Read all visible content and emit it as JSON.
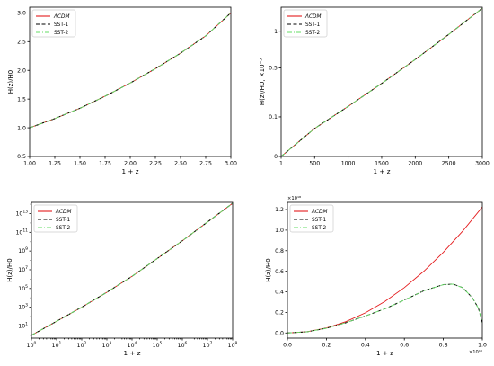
{
  "figure": {},
  "chart_data": [
    {
      "type": "line",
      "panel": "top-left",
      "xlabel": "1 + z",
      "ylabel": "H(z)/H0",
      "xlim": [
        1.0,
        3.0
      ],
      "ylim": [
        0.5,
        3.1
      ],
      "yscale": "linear",
      "xticks": [
        1.0,
        1.25,
        1.5,
        1.75,
        2.0,
        2.25,
        2.5,
        2.75,
        3.0
      ],
      "xtick_labels": [
        "1.00",
        "1.25",
        "1.50",
        "1.75",
        "2.00",
        "2.25",
        "2.50",
        "2.75",
        "3.00"
      ],
      "yticks": [
        0.5,
        1.0,
        1.5,
        2.0,
        2.5,
        3.0
      ],
      "ytick_labels": [
        "0.5",
        "1.0",
        "1.5",
        "2.0",
        "2.5",
        "3.0"
      ],
      "legend_position": "top-left",
      "x": [
        1.0,
        1.25,
        1.5,
        1.75,
        2.0,
        2.25,
        2.5,
        2.75,
        3.0
      ],
      "series": [
        {
          "name": "ΛCDM",
          "color": "#e41a1c",
          "style": "solid",
          "values": [
            1.0,
            1.16,
            1.34,
            1.55,
            1.78,
            2.03,
            2.3,
            2.6,
            3.0
          ]
        },
        {
          "name": "SST-1",
          "color": "#000000",
          "style": "dashed",
          "values": [
            1.0,
            1.16,
            1.34,
            1.55,
            1.78,
            2.03,
            2.3,
            2.6,
            3.0
          ]
        },
        {
          "name": "SST-2",
          "color": "#66dd66",
          "style": "dashdot",
          "values": [
            1.0,
            1.16,
            1.34,
            1.55,
            1.78,
            2.03,
            2.3,
            2.6,
            3.0
          ]
        }
      ]
    },
    {
      "type": "line",
      "panel": "top-right",
      "xlabel": "1 + z",
      "ylabel": "H(z)/H0, ×10⁻⁵",
      "xlim": [
        1,
        3000
      ],
      "ylim": [
        0,
        1.42
      ],
      "yscale": "sqrt",
      "xticks": [
        1,
        500,
        1000,
        1500,
        2000,
        2500,
        3000
      ],
      "xtick_labels": [
        "1",
        "500",
        "1000",
        "1500",
        "2000",
        "2500",
        "3000"
      ],
      "yticks": [
        0,
        0.1,
        0.5,
        1
      ],
      "ytick_labels": [
        "0",
        "0.1",
        "0.5",
        "1"
      ],
      "legend_position": "top-left",
      "x": [
        1,
        500,
        1000,
        1500,
        2000,
        2500,
        3000
      ],
      "series": [
        {
          "name": "ΛCDM",
          "color": "#e41a1c",
          "style": "solid",
          "values": [
            0.0,
            0.05,
            0.16,
            0.34,
            0.6,
            0.95,
            1.4
          ]
        },
        {
          "name": "SST-1",
          "color": "#000000",
          "style": "dashed",
          "values": [
            0.0,
            0.05,
            0.16,
            0.34,
            0.6,
            0.95,
            1.4
          ]
        },
        {
          "name": "SST-2",
          "color": "#66dd66",
          "style": "dashdot",
          "values": [
            0.0,
            0.05,
            0.16,
            0.34,
            0.6,
            0.95,
            1.4
          ]
        }
      ]
    },
    {
      "type": "line",
      "panel": "bottom-left",
      "xlabel": "1 + z",
      "ylabel": "H(z)/H0",
      "xscale": "log",
      "yscale": "log",
      "xlim_log10": [
        0,
        8
      ],
      "ylim_log10": [
        -0.3,
        14.2
      ],
      "xticks_log10": [
        0,
        1,
        2,
        3,
        4,
        5,
        6,
        7,
        8
      ],
      "yticks_log10": [
        1,
        3,
        5,
        7,
        9,
        11,
        13
      ],
      "xtick_exponents": [
        "0",
        "1",
        "2",
        "3",
        "4",
        "5",
        "6",
        "7",
        "8"
      ],
      "ytick_exponents": [
        "1",
        "3",
        "5",
        "7",
        "9",
        "11",
        "13"
      ],
      "tick_base": "10",
      "legend_position": "top-left",
      "x_log10": [
        0,
        1,
        2,
        3,
        4,
        5,
        6,
        7,
        8
      ],
      "series": [
        {
          "name": "ΛCDM",
          "color": "#e41a1c",
          "style": "solid",
          "values_log10": [
            0.0,
            1.5,
            3.0,
            4.6,
            6.3,
            8.2,
            10.1,
            12.1,
            14.1
          ]
        },
        {
          "name": "SST-1",
          "color": "#000000",
          "style": "dashed",
          "values_log10": [
            0.0,
            1.5,
            3.0,
            4.6,
            6.3,
            8.2,
            10.1,
            12.1,
            14.1
          ]
        },
        {
          "name": "SST-2",
          "color": "#66dd66",
          "style": "dashdot",
          "values_log10": [
            0.0,
            1.5,
            3.0,
            4.6,
            6.3,
            8.2,
            10.1,
            12.1,
            14.1
          ]
        }
      ]
    },
    {
      "type": "line",
      "panel": "bottom-right",
      "xlabel": "1 + z",
      "ylabel": "H(z)/H0",
      "x_multiplier": "×10¹⁰",
      "y_multiplier": "×10¹⁸",
      "xlim": [
        0,
        1.0
      ],
      "ylim": [
        -0.05,
        1.27
      ],
      "xticks": [
        0.0,
        0.2,
        0.4,
        0.6,
        0.8,
        1.0
      ],
      "xtick_labels": [
        "0.0",
        "0.2",
        "0.4",
        "0.6",
        "0.8",
        "1.0"
      ],
      "yticks": [
        0.0,
        0.2,
        0.4,
        0.6,
        0.8,
        1.0,
        1.2
      ],
      "ytick_labels": [
        "0.0",
        "0.2",
        "0.4",
        "0.6",
        "0.8",
        "1.0",
        "1.2"
      ],
      "legend_position": "top-left",
      "series": [
        {
          "name": "ΛCDM",
          "color": "#e41a1c",
          "style": "solid",
          "x": [
            0,
            0.1,
            0.2,
            0.3,
            0.4,
            0.5,
            0.6,
            0.7,
            0.8,
            0.9,
            1.0
          ],
          "values": [
            0,
            0.012,
            0.049,
            0.11,
            0.196,
            0.306,
            0.441,
            0.6,
            0.784,
            0.992,
            1.225
          ]
        },
        {
          "name": "SST-1",
          "color": "#000000",
          "style": "dashed",
          "x": [
            0,
            0.1,
            0.2,
            0.3,
            0.4,
            0.5,
            0.6,
            0.7,
            0.8,
            0.85,
            0.9,
            0.95,
            0.98,
            1.0
          ],
          "values": [
            0,
            0.011,
            0.046,
            0.1,
            0.165,
            0.235,
            0.32,
            0.41,
            0.47,
            0.475,
            0.44,
            0.34,
            0.24,
            0.1
          ]
        },
        {
          "name": "SST-2",
          "color": "#66dd66",
          "style": "dashdot",
          "x": [
            0,
            0.1,
            0.2,
            0.3,
            0.4,
            0.5,
            0.6,
            0.7,
            0.8,
            0.85,
            0.9,
            0.95,
            0.98,
            1.0
          ],
          "values": [
            0,
            0.011,
            0.046,
            0.1,
            0.165,
            0.235,
            0.32,
            0.41,
            0.47,
            0.475,
            0.44,
            0.34,
            0.24,
            0.1
          ]
        }
      ]
    }
  ]
}
